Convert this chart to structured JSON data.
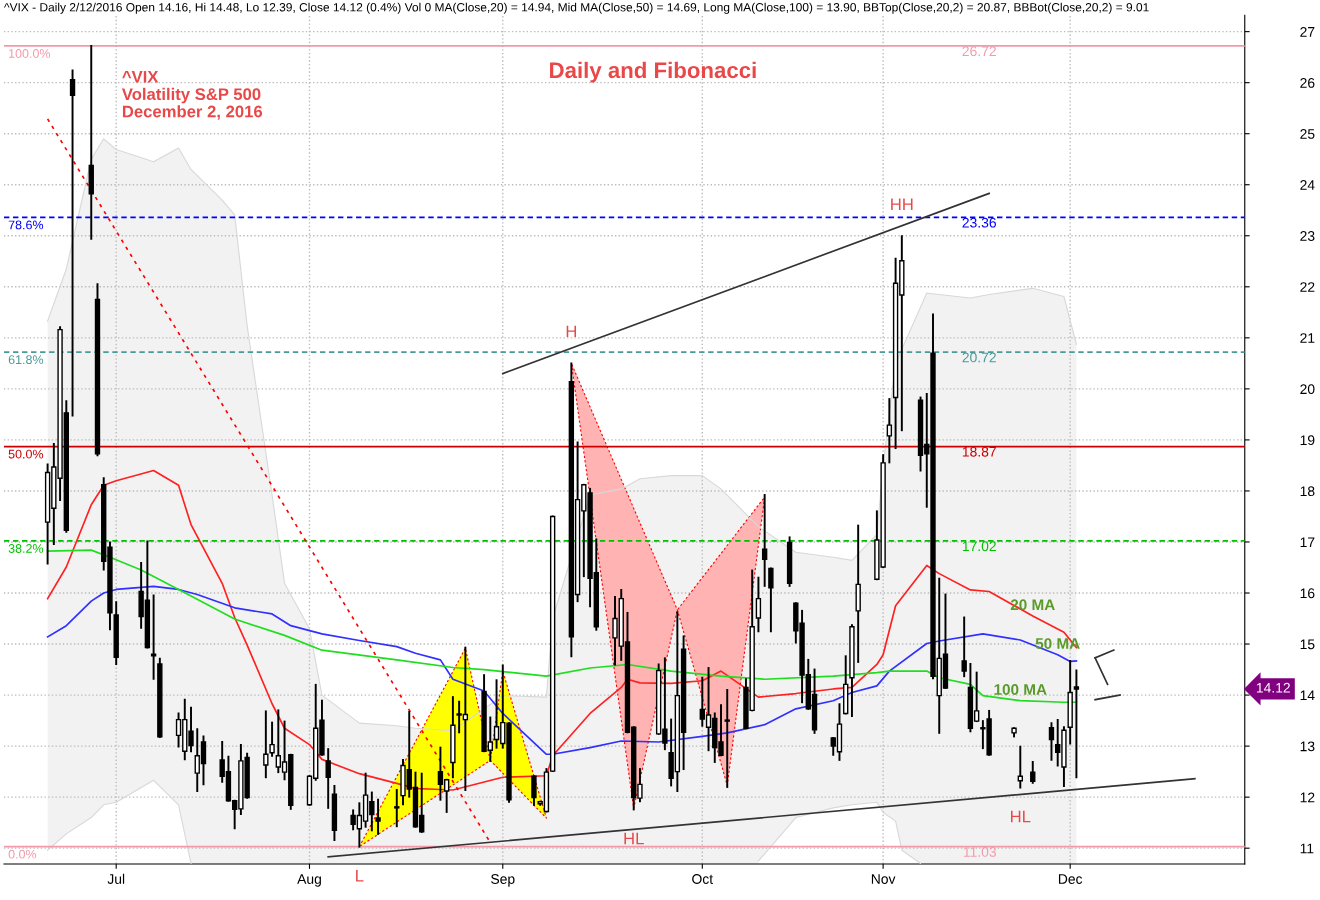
{
  "chart_data": {
    "type": "candlestick",
    "title": "Daily and Fibonacci",
    "x": [
      "2016-06-20",
      "2016-06-21",
      "2016-06-22",
      "2016-06-23",
      "2016-06-24",
      "2016-06-27",
      "2016-06-28",
      "2016-06-29",
      "2016-06-30",
      "2016-07-01",
      "2016-07-05",
      "2016-07-06",
      "2016-07-07",
      "2016-07-08",
      "2016-07-11",
      "2016-07-12",
      "2016-07-13",
      "2016-07-14",
      "2016-07-15",
      "2016-07-18",
      "2016-07-19",
      "2016-07-20",
      "2016-07-21",
      "2016-07-22",
      "2016-07-25",
      "2016-07-26",
      "2016-07-27",
      "2016-07-28",
      "2016-07-29",
      "2016-08-01",
      "2016-08-02",
      "2016-08-03",
      "2016-08-04",
      "2016-08-05",
      "2016-08-08",
      "2016-08-09",
      "2016-08-10",
      "2016-08-11",
      "2016-08-12",
      "2016-08-15",
      "2016-08-16",
      "2016-08-17",
      "2016-08-18",
      "2016-08-19",
      "2016-08-22",
      "2016-08-23",
      "2016-08-24",
      "2016-08-25",
      "2016-08-26",
      "2016-08-29",
      "2016-08-30",
      "2016-08-31",
      "2016-09-01",
      "2016-09-02",
      "2016-09-06",
      "2016-09-07",
      "2016-09-08",
      "2016-09-09",
      "2016-09-12",
      "2016-09-13",
      "2016-09-14",
      "2016-09-15",
      "2016-09-16",
      "2016-09-19",
      "2016-09-20",
      "2016-09-21",
      "2016-09-22",
      "2016-09-23",
      "2016-09-26",
      "2016-09-27",
      "2016-09-28",
      "2016-09-29",
      "2016-09-30",
      "2016-10-03",
      "2016-10-04",
      "2016-10-05",
      "2016-10-06",
      "2016-10-07",
      "2016-10-10",
      "2016-10-11",
      "2016-10-12",
      "2016-10-13",
      "2016-10-14",
      "2016-10-17",
      "2016-10-18",
      "2016-10-19",
      "2016-10-20",
      "2016-10-21",
      "2016-10-24",
      "2016-10-25",
      "2016-10-26",
      "2016-10-27",
      "2016-10-28",
      "2016-10-31",
      "2016-11-01",
      "2016-11-02",
      "2016-11-03",
      "2016-11-04",
      "2016-11-07",
      "2016-11-08",
      "2016-11-09",
      "2016-11-10",
      "2016-11-11",
      "2016-11-14",
      "2016-11-15",
      "2016-11-16",
      "2016-11-17",
      "2016-11-18",
      "2016-11-22",
      "2016-11-23",
      "2016-11-25",
      "2016-11-28",
      "2016-11-29",
      "2016-11-30",
      "2016-12-01",
      "2016-12-02"
    ],
    "ohlc": [
      [
        17.39,
        18.52,
        16.58,
        18.36
      ],
      [
        17.66,
        18.92,
        16.96,
        18.47
      ],
      [
        18.25,
        21.21,
        17.82,
        21.16
      ],
      [
        19.53,
        19.76,
        17.2,
        17.23
      ],
      [
        26.06,
        26.24,
        19.48,
        25.75
      ],
      [
        24.38,
        26.72,
        22.94,
        23.82
      ],
      [
        21.75,
        22.05,
        18.7,
        18.73
      ],
      [
        18.12,
        18.25,
        16.46,
        16.62
      ],
      [
        16.9,
        16.99,
        15.29,
        15.61
      ],
      [
        15.57,
        15.82,
        14.61,
        14.74
      ],
      [
        16.03,
        16.59,
        15.32,
        15.54
      ],
      [
        15.86,
        17.01,
        14.93,
        14.93
      ],
      [
        14.8,
        15.95,
        14.32,
        14.77
      ],
      [
        14.61,
        14.71,
        13.18,
        13.18
      ],
      [
        13.21,
        13.64,
        12.99,
        13.52
      ],
      [
        12.9,
        13.91,
        12.74,
        13.52
      ],
      [
        13.29,
        13.75,
        12.9,
        13.01
      ],
      [
        12.47,
        13.33,
        12.12,
        12.81
      ],
      [
        13.08,
        13.19,
        12.25,
        12.66
      ],
      [
        12.73,
        13.08,
        12.3,
        12.41
      ],
      [
        12.5,
        12.79,
        11.93,
        11.93
      ],
      [
        11.93,
        11.93,
        11.39,
        11.76
      ],
      [
        11.77,
        13.02,
        11.67,
        12.71
      ],
      [
        12.78,
        12.85,
        11.99,
        11.99
      ],
      [
        12.63,
        13.68,
        12.39,
        12.84
      ],
      [
        12.87,
        13.46,
        12.81,
        13.03
      ],
      [
        12.59,
        13.7,
        12.49,
        12.81
      ],
      [
        12.49,
        13.48,
        12.35,
        12.69
      ],
      [
        12.83,
        12.83,
        11.77,
        11.84
      ],
      [
        11.85,
        12.41,
        11.85,
        12.41
      ],
      [
        12.37,
        14.2,
        12.34,
        13.35
      ],
      [
        13.51,
        13.89,
        12.83,
        12.83
      ],
      [
        12.71,
        12.94,
        11.79,
        12.39
      ],
      [
        12.06,
        12.22,
        11.16,
        11.35
      ],
      [
        11.64,
        11.74,
        11.37,
        11.47
      ],
      [
        11.38,
        11.88,
        11.03,
        11.64
      ],
      [
        11.53,
        12.46,
        11.42,
        12.04
      ],
      [
        11.91,
        12.09,
        11.35,
        11.66
      ],
      [
        11.59,
        11.95,
        11.28,
        11.53
      ],
      [
        11.79,
        12.14,
        11.43,
        11.79
      ],
      [
        12.03,
        12.73,
        11.86,
        12.62
      ],
      [
        12.54,
        13.67,
        12.01,
        12.16
      ],
      [
        12.19,
        12.48,
        11.42,
        11.42
      ],
      [
        11.64,
        12.46,
        11.32,
        11.32
      ],
      [
        12.5,
        12.97,
        11.95,
        12.25
      ],
      [
        12.12,
        12.34,
        11.71,
        12.34
      ],
      [
        12.68,
        13.96,
        12.39,
        13.41
      ],
      [
        13.61,
        13.87,
        13.27,
        13.61
      ],
      [
        13.52,
        14.93,
        12.14,
        13.62
      ],
      [
        14.07,
        14.39,
        12.9,
        12.9
      ],
      [
        12.92,
        13.56,
        12.71,
        13.08
      ],
      [
        13.13,
        14.29,
        12.97,
        13.38
      ],
      [
        13.05,
        14.58,
        12.97,
        13.46
      ],
      [
        13.45,
        13.45,
        11.91,
        11.95
      ],
      [
        12.41,
        12.41,
        11.85,
        11.99
      ],
      [
        11.87,
        11.91,
        11.85,
        11.91
      ],
      [
        11.72,
        12.55,
        11.72,
        12.49
      ],
      [
        12.51,
        17.5,
        12.51,
        17.5
      ],
      [
        20.14,
        20.5,
        14.76,
        15.14
      ],
      [
        15.97,
        18.95,
        15.84,
        17.83
      ],
      [
        17.61,
        18.12,
        16.33,
        18.12
      ],
      [
        17.96,
        18.04,
        15.74,
        16.29
      ],
      [
        16.4,
        17.05,
        15.28,
        15.34
      ],
      [
        15.12,
        15.92,
        14.6,
        15.5
      ],
      [
        14.96,
        16.06,
        14.69,
        15.89
      ],
      [
        15.04,
        15.61,
        13.27,
        13.27
      ],
      [
        13.37,
        13.37,
        11.76,
        11.99
      ],
      [
        11.98,
        12.55,
        11.92,
        12.25
      ],
      [
        13.24,
        14.6,
        13.24,
        14.48
      ],
      [
        13.33,
        14.72,
        12.94,
        13.06
      ],
      [
        12.87,
        13.52,
        12.23,
        12.37
      ],
      [
        12.5,
        15.62,
        12.12,
        13.99
      ],
      [
        14.9,
        15.15,
        12.55,
        13.27
      ],
      [
        13.72,
        14.34,
        13.4,
        13.53
      ],
      [
        13.37,
        14.53,
        12.92,
        13.61
      ],
      [
        13.54,
        13.64,
        12.69,
        12.97
      ],
      [
        13.08,
        13.8,
        12.82,
        12.82
      ],
      [
        13.49,
        14.1,
        12.2,
        13.49
      ],
      [
        14.15,
        14.31,
        13.35,
        13.35
      ],
      [
        13.7,
        16.44,
        13.7,
        15.34
      ],
      [
        15.51,
        16.3,
        15.25,
        15.89
      ],
      [
        16.86,
        17.92,
        16.14,
        16.66
      ],
      [
        16.48,
        16.48,
        15.25,
        16.1
      ],
      [
        16.99,
        17.09,
        16.14,
        16.19
      ],
      [
        15.8,
        15.8,
        15.03,
        15.26
      ],
      [
        15.41,
        15.65,
        13.86,
        14.39
      ],
      [
        14.4,
        14.69,
        13.73,
        13.73
      ],
      [
        14.01,
        14.5,
        13.26,
        13.32
      ],
      [
        13.16,
        13.16,
        12.83,
        13.0
      ],
      [
        12.89,
        13.82,
        12.73,
        13.43
      ],
      [
        13.64,
        14.76,
        13.64,
        14.21
      ],
      [
        14.34,
        15.37,
        13.59,
        15.34
      ],
      [
        15.65,
        17.32,
        14.65,
        16.17
      ],
      [
        16.27,
        17.6,
        16.27,
        17.04
      ],
      [
        16.51,
        18.7,
        16.51,
        18.55
      ],
      [
        19.08,
        19.8,
        18.56,
        19.29
      ],
      [
        19.83,
        22.55,
        18.84,
        22.07
      ],
      [
        21.84,
        22.99,
        19.19,
        22.51
      ],
      [
        19.78,
        19.83,
        18.4,
        18.7
      ],
      [
        18.91,
        19.9,
        17.69,
        18.73
      ],
      [
        20.7,
        21.46,
        14.33,
        14.37
      ],
      [
        13.99,
        16.28,
        13.26,
        14.72
      ],
      [
        14.8,
        15.97,
        14.14,
        14.14
      ],
      [
        14.67,
        15.52,
        14.37,
        14.47
      ],
      [
        14.15,
        14.61,
        13.29,
        13.35
      ],
      [
        13.49,
        14.44,
        13.49,
        13.69
      ],
      [
        13.34,
        13.49,
        12.96,
        13.34
      ],
      [
        13.53,
        13.69,
        12.83,
        12.83
      ],
      [
        13.26,
        13.35,
        13.19,
        13.35
      ],
      [
        12.32,
        12.99,
        12.19,
        12.41
      ],
      [
        12.49,
        12.69,
        12.28,
        12.31
      ],
      [
        13.36,
        13.45,
        12.73,
        13.13
      ],
      [
        13.03,
        13.51,
        12.62,
        12.88
      ],
      [
        12.59,
        13.37,
        12.22,
        13.31
      ],
      [
        13.37,
        14.67,
        13.05,
        14.05
      ],
      [
        14.16,
        14.48,
        12.39,
        14.12
      ]
    ],
    "series": [
      {
        "type": "area",
        "color": "#f2f2f2",
        "x": [
          "2016-06-20",
          "2016-06-23",
          "2016-06-27",
          "2016-06-29",
          "2016-07-01",
          "2016-07-07",
          "2016-07-11",
          "2016-07-13",
          "2016-07-18",
          "2016-07-20",
          "2016-07-22",
          "2016-07-26",
          "2016-07-28",
          "2016-08-01",
          "2016-08-03",
          "2016-08-09",
          "2016-08-15",
          "2016-08-18",
          "2016-08-24",
          "2016-09-01",
          "2016-09-08",
          "2016-09-09",
          "2016-09-15",
          "2016-09-20",
          "2016-09-21",
          "2016-09-23",
          "2016-09-28",
          "2016-10-03",
          "2016-10-06",
          "2016-10-12",
          "2016-10-18",
          "2016-10-24",
          "2016-10-27",
          "2016-10-31",
          "2016-11-01",
          "2016-11-03",
          "2016-11-08",
          "2016-11-10",
          "2016-11-15",
          "2016-11-18",
          "2016-11-25",
          "2016-11-30",
          "2016-12-02"
        ],
        "values": [
          21.33,
          22.35,
          24.5,
          24.9,
          24.69,
          24.45,
          24.72,
          24.3,
          23.7,
          23.41,
          21.24,
          17.92,
          16.19,
          15.3,
          14.0,
          13.45,
          13.4,
          13.35,
          13.3,
          13.99,
          13.96,
          15.5,
          17.92,
          18.04,
          18.1,
          18.24,
          18.3,
          18.3,
          18.04,
          17.3,
          16.8,
          16.7,
          16.64,
          17.15,
          18.5,
          20.5,
          21.88,
          21.85,
          21.78,
          21.85,
          21.97,
          21.81,
          20.87
        ]
      },
      {
        "type": "area",
        "color": "#ffffff",
        "x": [
          "2016-06-20",
          "2016-06-23",
          "2016-06-27",
          "2016-06-29",
          "2016-07-01",
          "2016-07-07",
          "2016-07-11",
          "2016-07-13"
        ],
        "values": [
          10.96,
          11.28,
          11.6,
          11.85,
          11.9,
          12.33,
          11.85,
          10.7
        ]
      },
      {
        "type": "area",
        "color": "#ffffff",
        "x": [
          "2016-10-12",
          "2016-10-18",
          "2016-10-24",
          "2016-10-27",
          "2016-10-31",
          "2016-11-01",
          "2016-11-03",
          "2016-11-04",
          "2016-11-07"
        ],
        "values": [
          10.75,
          11.6,
          11.79,
          11.85,
          11.9,
          11.7,
          11.53,
          10.96,
          10.7
        ]
      },
      {
        "type": "area",
        "color": "#ffff00",
        "x": [
          "2016-08-09",
          "2016-08-26",
          "2016-08-30",
          "2016-09-01",
          "2016-09-08",
          "2016-08-30",
          "2016-08-09"
        ],
        "values": [
          11.03,
          14.92,
          12.72,
          14.47,
          11.59,
          12.72,
          11.03
        ]
      },
      {
        "type": "area",
        "color": "#ffb3b3",
        "x": [
          "2016-09-12",
          "2016-09-22",
          "2016-09-29",
          "2016-10-13",
          "2016-10-07",
          "2016-09-29",
          "2016-09-12"
        ],
        "values": [
          20.5,
          11.78,
          15.67,
          17.88,
          12.23,
          15.67,
          20.5
        ]
      },
      {
        "type": "line",
        "name": "20 MA",
        "color": "#ff2020",
        "x": [
          "2016-06-20",
          "2016-06-23",
          "2016-06-27",
          "2016-06-29",
          "2016-07-01",
          "2016-07-07",
          "2016-07-11",
          "2016-07-13",
          "2016-07-18",
          "2016-07-20",
          "2016-07-22",
          "2016-07-26",
          "2016-07-28",
          "2016-08-01",
          "2016-08-03",
          "2016-08-09",
          "2016-08-15",
          "2016-08-18",
          "2016-08-24",
          "2016-09-01",
          "2016-09-08",
          "2016-09-09",
          "2016-09-15",
          "2016-09-20",
          "2016-09-21",
          "2016-09-23",
          "2016-09-28",
          "2016-10-03",
          "2016-10-06",
          "2016-10-12",
          "2016-10-18",
          "2016-10-24",
          "2016-10-27",
          "2016-10-31",
          "2016-11-01",
          "2016-11-03",
          "2016-11-08",
          "2016-11-10",
          "2016-11-15",
          "2016-11-18",
          "2016-11-25",
          "2016-11-30",
          "2016-12-02"
        ],
        "values": [
          15.89,
          16.51,
          17.73,
          18.11,
          18.2,
          18.4,
          18.11,
          17.34,
          16.19,
          15.52,
          14.98,
          13.83,
          13.35,
          13.03,
          12.74,
          12.46,
          12.27,
          12.17,
          12.14,
          12.39,
          12.42,
          12.81,
          13.64,
          14.15,
          14.31,
          14.24,
          14.23,
          14.28,
          14.47,
          13.96,
          14.03,
          14.12,
          14.15,
          14.6,
          14.79,
          15.75,
          16.54,
          16.38,
          16.06,
          16.03,
          15.55,
          15.23,
          14.93
        ]
      },
      {
        "type": "line",
        "name": "50 MA",
        "color": "#3030ff",
        "x": [
          "2016-06-20",
          "2016-06-23",
          "2016-06-27",
          "2016-06-29",
          "2016-07-01",
          "2016-07-07",
          "2016-07-11",
          "2016-07-14",
          "2016-07-20",
          "2016-07-26",
          "2016-07-29",
          "2016-08-03",
          "2016-08-09",
          "2016-08-15",
          "2016-08-18",
          "2016-08-22",
          "2016-08-24",
          "2016-08-29",
          "2016-09-01",
          "2016-09-08",
          "2016-09-09",
          "2016-09-15",
          "2016-09-20",
          "2016-09-26",
          "2016-10-03",
          "2016-10-07",
          "2016-10-13",
          "2016-10-18",
          "2016-10-24",
          "2016-10-27",
          "2016-10-31",
          "2016-11-02",
          "2016-11-08",
          "2016-11-10",
          "2016-11-17",
          "2016-11-23",
          "2016-11-29",
          "2016-12-01",
          "2016-12-02"
        ],
        "values": [
          15.14,
          15.36,
          15.84,
          16.0,
          16.07,
          16.13,
          16.07,
          15.97,
          15.71,
          15.59,
          15.36,
          15.2,
          15.07,
          14.95,
          14.82,
          14.69,
          14.31,
          14.08,
          13.64,
          12.84,
          12.84,
          12.97,
          13.1,
          13.08,
          13.19,
          13.26,
          13.42,
          13.73,
          13.89,
          14.05,
          14.18,
          14.47,
          15.01,
          15.06,
          15.2,
          15.08,
          14.79,
          14.66,
          14.67
        ]
      },
      {
        "type": "line",
        "name": "100 MA",
        "color": "#20dd20",
        "x": [
          "2016-06-20",
          "2016-06-27",
          "2016-06-30",
          "2016-07-05",
          "2016-07-13",
          "2016-07-20",
          "2016-07-28",
          "2016-08-03",
          "2016-08-15",
          "2016-08-24",
          "2016-08-29",
          "2016-09-08",
          "2016-09-15",
          "2016-09-21",
          "2016-09-28",
          "2016-10-06",
          "2016-10-13",
          "2016-10-24",
          "2016-10-31",
          "2016-11-02",
          "2016-11-08",
          "2016-11-10",
          "2016-11-15",
          "2016-11-17",
          "2016-11-23",
          "2016-11-30",
          "2016-12-02"
        ],
        "values": [
          16.82,
          16.84,
          16.7,
          16.45,
          15.94,
          15.49,
          15.17,
          14.88,
          14.69,
          14.54,
          14.5,
          14.37,
          14.53,
          14.6,
          14.47,
          14.37,
          14.31,
          14.37,
          14.44,
          14.47,
          14.47,
          14.34,
          14.21,
          13.99,
          13.89,
          13.86,
          13.86
        ]
      },
      {
        "type": "line",
        "color": "#ff0000",
        "line_style": "dotted",
        "x": [
          "2016-06-20",
          "2016-08-30"
        ],
        "values": [
          25.29,
          11.11
        ]
      },
      {
        "type": "line",
        "color": "#333333",
        "x": [
          "2016-09-01",
          "2016-11-18"
        ],
        "values": [
          20.3,
          23.83
        ]
      },
      {
        "type": "line",
        "color": "#333333",
        "x": [
          "2016-08-04",
          "2016-12-21"
        ],
        "values": [
          10.83,
          12.36
        ]
      },
      {
        "type": "line",
        "color": "#333333",
        "x": [
          "2016-12-05",
          "2016-12-08"
        ],
        "values": [
          14.73,
          14.88
        ]
      },
      {
        "type": "line",
        "color": "#333333",
        "x": [
          "2016-12-05",
          "2016-12-07"
        ],
        "values": [
          14.73,
          14.21
        ]
      },
      {
        "type": "line",
        "color": "#333333",
        "x": [
          "2016-12-05",
          "2016-12-09"
        ],
        "values": [
          13.91,
          14.0
        ]
      }
    ],
    "ref_lines": [
      {
        "axis": "y",
        "value": 26.72,
        "label": "26.72",
        "color": "#f29aaa",
        "line_style": "solid"
      },
      {
        "axis": "y",
        "value": 23.36,
        "label": "23.36",
        "color": "#0000ff",
        "line_style": "dashed"
      },
      {
        "axis": "y",
        "value": 20.72,
        "label": "20.72",
        "color": "#4a9a9a",
        "line_style": "dashed"
      },
      {
        "axis": "y",
        "value": 18.87,
        "label": "18.87",
        "color": "#cc0000",
        "line_style": "solid"
      },
      {
        "axis": "y",
        "value": 17.02,
        "label": "17.02",
        "color": "#00c000",
        "line_style": "dashed"
      },
      {
        "axis": "y",
        "value": 11.03,
        "label": "11.03",
        "color": "#f29aaa",
        "line_style": "solid"
      }
    ],
    "annotations": [
      "^VIX - Daily 2/12/2016 Open 14.16, Hi 14.48, Lo 12.39, Close 14.12 (0.4%) Vol 0 MA(Close,20) = 14.94, Mid MA(Close,50) = 14.69, Long MA(Close,100) = 13.90, BBTop(Close,20,2) = 20.87, BBBot(Close,20,2) = 9.01",
      "^VIX\nVolatility S&P 500\nDecember 2, 2016",
      {
        "text": "100.0%",
        "x": "2016-06-13",
        "y": 26.72
      },
      {
        "text": "78.6%",
        "x": "2016-06-13",
        "y": 23.36
      },
      {
        "text": "61.8%",
        "x": "2016-06-13",
        "y": 20.72
      },
      {
        "text": "50.0%",
        "x": "2016-06-13",
        "y": 18.87
      },
      {
        "text": "38.2%",
        "x": "2016-06-13",
        "y": 17.02
      },
      {
        "text": "0.0%",
        "x": "2016-06-13",
        "y": 11.03
      },
      {
        "text": "H",
        "x": "2016-09-12",
        "y": 20.5
      },
      {
        "text": "HH",
        "x": "2016-11-04",
        "y": 22.99
      },
      {
        "text": "L",
        "x": "2016-08-09",
        "y": 11.03
      },
      {
        "text": "HL",
        "x": "2016-09-22",
        "y": 11.76
      },
      {
        "text": "HL",
        "x": "2016-11-23",
        "y": 12.19
      },
      "14.12"
    ],
    "xlim": [
      "2016-06-13",
      "2016-12-29"
    ],
    "xticks": [
      {
        "value": "2016-07-01",
        "label": "Jul"
      },
      {
        "value": "2016-08-01",
        "label": "Aug"
      },
      {
        "value": "2016-09-01",
        "label": "Sep"
      },
      {
        "value": "2016-10-03",
        "label": "Oct"
      },
      {
        "value": "2016-11-01",
        "label": "Nov"
      },
      {
        "value": "2016-12-01",
        "label": "Dec"
      }
    ],
    "ylim": [
      10.69,
      27.32
    ],
    "yticks": [
      11,
      12,
      13,
      14,
      15,
      16,
      17,
      18,
      19,
      20,
      21,
      22,
      23,
      24,
      25,
      26,
      27
    ],
    "grid": true
  }
}
